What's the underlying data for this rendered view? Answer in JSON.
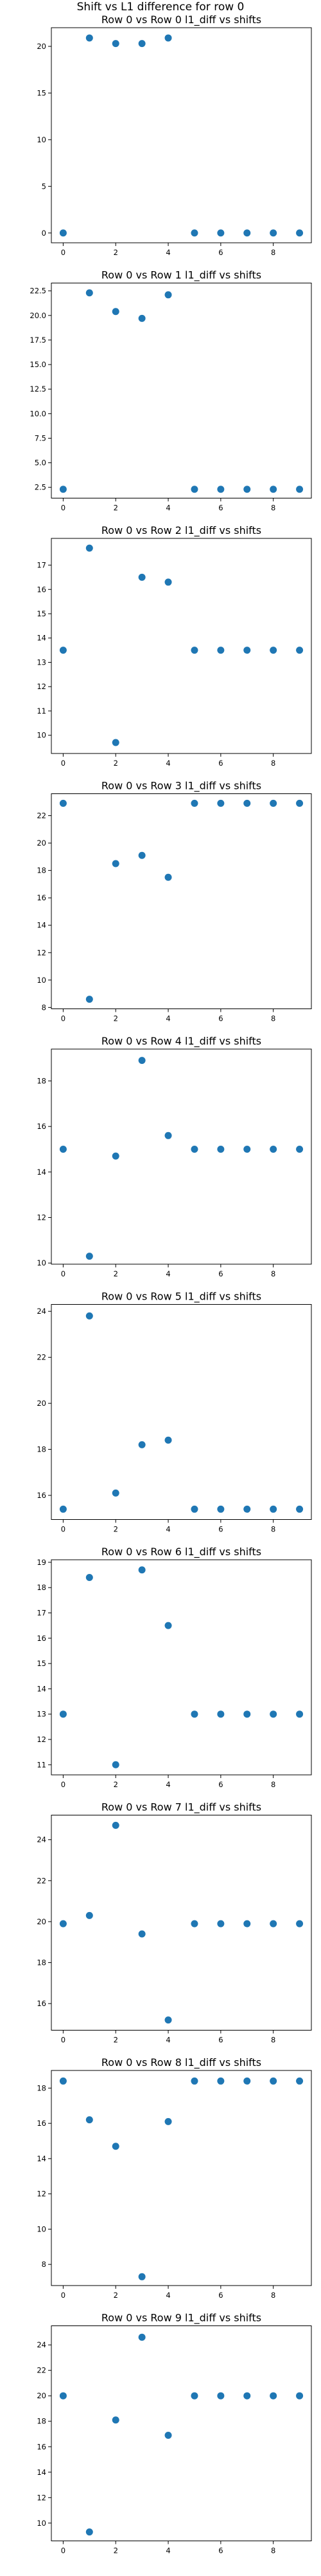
{
  "figure": {
    "suptitle": "Shift vs L1 difference for row 0"
  },
  "colors": {
    "marker": "#1f77b4",
    "frame": "#000000",
    "background": "#ffffff"
  },
  "chart_data": [
    {
      "type": "scatter",
      "title": "Row 0 vs Row 0 l1_diff vs shifts",
      "xlabel": "",
      "ylabel": "",
      "grid": false,
      "xlim": [
        -0.45,
        9.45
      ],
      "ylim": [
        -1.05,
        22.0
      ],
      "xticks": [
        0,
        2,
        4,
        6,
        8
      ],
      "yticks": [
        0,
        5,
        10,
        15,
        20
      ],
      "x": [
        0,
        1,
        2,
        3,
        4,
        5,
        6,
        7,
        8,
        9
      ],
      "y": [
        0,
        20.9,
        20.3,
        20.3,
        20.9,
        0,
        0,
        0,
        0,
        0
      ]
    },
    {
      "type": "scatter",
      "title": "Row 0 vs Row 1 l1_diff vs shifts",
      "xlabel": "",
      "ylabel": "",
      "grid": false,
      "xlim": [
        -0.45,
        9.45
      ],
      "ylim": [
        1.4,
        23.3
      ],
      "xticks": [
        0,
        2,
        4,
        6,
        8
      ],
      "yticks": [
        2.5,
        5.0,
        7.5,
        10.0,
        12.5,
        15.0,
        17.5,
        20.0,
        22.5
      ],
      "x": [
        0,
        1,
        2,
        3,
        4,
        5,
        6,
        7,
        8,
        9
      ],
      "y": [
        2.3,
        22.3,
        20.4,
        19.7,
        22.1,
        2.3,
        2.3,
        2.3,
        2.3,
        2.3
      ]
    },
    {
      "type": "scatter",
      "title": "Row 0 vs Row 2 l1_diff vs shifts",
      "xlabel": "",
      "ylabel": "",
      "grid": false,
      "xlim": [
        -0.45,
        9.45
      ],
      "ylim": [
        9.25,
        18.1
      ],
      "xticks": [
        0,
        2,
        4,
        6,
        8
      ],
      "yticks": [
        10,
        11,
        12,
        13,
        14,
        15,
        16,
        17
      ],
      "x": [
        0,
        1,
        2,
        3,
        4,
        5,
        6,
        7,
        8,
        9
      ],
      "y": [
        13.5,
        17.7,
        9.7,
        16.5,
        16.3,
        13.5,
        13.5,
        13.5,
        13.5,
        13.5
      ]
    },
    {
      "type": "scatter",
      "title": "Row 0 vs Row 3 l1_diff vs shifts",
      "xlabel": "",
      "ylabel": "",
      "grid": false,
      "xlim": [
        -0.45,
        9.45
      ],
      "ylim": [
        7.9,
        23.6
      ],
      "xticks": [
        0,
        2,
        4,
        6,
        8
      ],
      "yticks": [
        8,
        10,
        12,
        14,
        16,
        18,
        20,
        22
      ],
      "x": [
        0,
        1,
        2,
        3,
        4,
        5,
        6,
        7,
        8,
        9
      ],
      "y": [
        22.9,
        8.6,
        18.5,
        19.1,
        17.5,
        22.9,
        22.9,
        22.9,
        22.9,
        22.9
      ]
    },
    {
      "type": "scatter",
      "title": "Row 0 vs Row 4 l1_diff vs shifts",
      "xlabel": "",
      "ylabel": "",
      "grid": false,
      "xlim": [
        -0.45,
        9.45
      ],
      "ylim": [
        9.95,
        19.4
      ],
      "xticks": [
        0,
        2,
        4,
        6,
        8
      ],
      "yticks": [
        10,
        12,
        14,
        16,
        18
      ],
      "x": [
        0,
        1,
        2,
        3,
        4,
        5,
        6,
        7,
        8,
        9
      ],
      "y": [
        15.0,
        10.3,
        14.7,
        18.9,
        15.6,
        15.0,
        15.0,
        15.0,
        15.0,
        15.0
      ]
    },
    {
      "type": "scatter",
      "title": "Row 0 vs Row 5 l1_diff vs shifts",
      "xlabel": "",
      "ylabel": "",
      "grid": false,
      "xlim": [
        -0.45,
        9.45
      ],
      "ylim": [
        14.95,
        24.3
      ],
      "xticks": [
        0,
        2,
        4,
        6,
        8
      ],
      "yticks": [
        16,
        18,
        20,
        22,
        24
      ],
      "x": [
        0,
        1,
        2,
        3,
        4,
        5,
        6,
        7,
        8,
        9
      ],
      "y": [
        15.4,
        23.8,
        16.1,
        18.2,
        18.4,
        15.4,
        15.4,
        15.4,
        15.4,
        15.4
      ]
    },
    {
      "type": "scatter",
      "title": "Row 0 vs Row 6 l1_diff vs shifts",
      "xlabel": "",
      "ylabel": "",
      "grid": false,
      "xlim": [
        -0.45,
        9.45
      ],
      "ylim": [
        10.6,
        19.1
      ],
      "xticks": [
        0,
        2,
        4,
        6,
        8
      ],
      "yticks": [
        11,
        12,
        13,
        14,
        15,
        16,
        17,
        18,
        19
      ],
      "x": [
        0,
        1,
        2,
        3,
        4,
        5,
        6,
        7,
        8,
        9
      ],
      "y": [
        13.0,
        18.4,
        11.0,
        18.7,
        16.5,
        13.0,
        13.0,
        13.0,
        13.0,
        13.0
      ]
    },
    {
      "type": "scatter",
      "title": "Row 0 vs Row 7 l1_diff vs shifts",
      "xlabel": "",
      "ylabel": "",
      "grid": false,
      "xlim": [
        -0.45,
        9.45
      ],
      "ylim": [
        14.7,
        25.2
      ],
      "xticks": [
        0,
        2,
        4,
        6,
        8
      ],
      "yticks": [
        16,
        18,
        20,
        22,
        24
      ],
      "x": [
        0,
        1,
        2,
        3,
        4,
        5,
        6,
        7,
        8,
        9
      ],
      "y": [
        19.9,
        20.3,
        24.7,
        19.4,
        15.2,
        19.9,
        19.9,
        19.9,
        19.9,
        19.9
      ]
    },
    {
      "type": "scatter",
      "title": "Row 0 vs Row 8 l1_diff vs shifts",
      "xlabel": "",
      "ylabel": "",
      "grid": false,
      "xlim": [
        -0.45,
        9.45
      ],
      "ylim": [
        6.8,
        19.0
      ],
      "xticks": [
        0,
        2,
        4,
        6,
        8
      ],
      "yticks": [
        8,
        10,
        12,
        14,
        16,
        18
      ],
      "x": [
        0,
        1,
        2,
        3,
        4,
        5,
        6,
        7,
        8,
        9
      ],
      "y": [
        18.4,
        16.2,
        14.7,
        7.3,
        16.1,
        18.4,
        18.4,
        18.4,
        18.4,
        18.4
      ]
    },
    {
      "type": "scatter",
      "title": "Row 0 vs Row 9 l1_diff vs shifts",
      "xlabel": "",
      "ylabel": "",
      "grid": false,
      "xlim": [
        -0.45,
        9.45
      ],
      "ylim": [
        8.6,
        25.5
      ],
      "xticks": [
        0,
        2,
        4,
        6,
        8
      ],
      "yticks": [
        10,
        12,
        14,
        16,
        18,
        20,
        22,
        24
      ],
      "x": [
        0,
        1,
        2,
        3,
        4,
        5,
        6,
        7,
        8,
        9
      ],
      "y": [
        20.0,
        9.3,
        18.1,
        24.6,
        16.9,
        20.0,
        20.0,
        20.0,
        20.0,
        20.0
      ]
    }
  ]
}
